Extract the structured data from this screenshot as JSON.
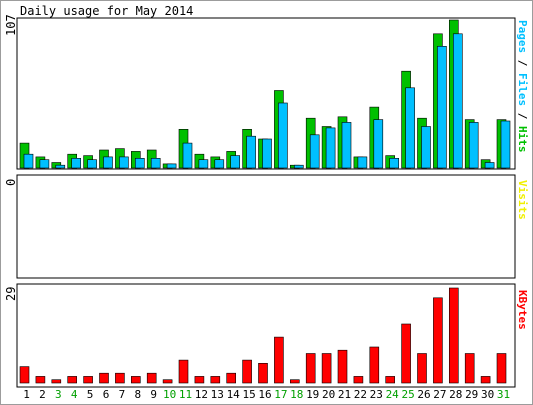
{
  "chart_data": [
    {
      "type": "bar",
      "title": "Daily usage for May 2014",
      "ymax_label": "107",
      "right_label_parts": [
        {
          "text": "Pages",
          "color": "#00c0ff"
        },
        {
          "text": " / ",
          "color": "#000000"
        },
        {
          "text": "Files",
          "color": "#00c0ff"
        },
        {
          "text": " / ",
          "color": "#000000"
        },
        {
          "text": "Hits",
          "color": "#00c000"
        }
      ],
      "ylim": [
        0,
        107
      ],
      "categories": [
        "1",
        "2",
        "3",
        "4",
        "5",
        "6",
        "7",
        "8",
        "9",
        "10",
        "11",
        "12",
        "13",
        "14",
        "15",
        "16",
        "17",
        "18",
        "19",
        "20",
        "21",
        "22",
        "23",
        "24",
        "25",
        "26",
        "27",
        "28",
        "29",
        "30",
        "31"
      ],
      "series": [
        {
          "name": "Hits",
          "color": "#00c000",
          "values": [
            18,
            8,
            4,
            10,
            9,
            13,
            14,
            12,
            13,
            3,
            28,
            10,
            8,
            12,
            28,
            21,
            56,
            2,
            36,
            30,
            37,
            8,
            44,
            9,
            70,
            36,
            97,
            107,
            35,
            6,
            35
          ]
        },
        {
          "name": "Files",
          "color": "#00c0ff",
          "values": [
            10,
            6,
            2,
            7,
            6,
            8,
            8,
            7,
            7,
            3,
            18,
            6,
            6,
            9,
            23,
            21,
            47,
            2,
            24,
            29,
            33,
            8,
            35,
            7,
            58,
            30,
            88,
            97,
            33,
            4,
            34
          ]
        },
        {
          "name": "Pages",
          "color": "#00c0ff",
          "values": [
            0,
            0,
            0,
            0,
            0,
            0,
            0,
            0,
            0,
            0,
            0,
            0,
            0,
            0,
            0,
            0,
            0,
            0,
            0,
            0,
            0,
            0,
            0,
            0,
            0,
            0,
            0,
            0,
            0,
            0,
            0
          ]
        }
      ]
    },
    {
      "type": "bar",
      "ymax_label": "0",
      "right_label_parts": [
        {
          "text": "Visits",
          "color": "#f0f000"
        }
      ],
      "ylim": [
        0,
        1
      ],
      "series": [
        {
          "name": "Visits",
          "color": "#f0f000",
          "values": [
            0,
            0,
            0,
            0,
            0,
            0,
            0,
            0,
            0,
            0,
            0,
            0,
            0,
            0,
            0,
            0,
            0,
            0,
            0,
            0,
            0,
            0,
            0,
            0,
            0,
            0,
            0,
            0,
            0,
            0,
            0
          ]
        }
      ]
    },
    {
      "type": "bar",
      "ymax_label": "29",
      "right_label_parts": [
        {
          "text": "KBytes",
          "color": "#ff0000"
        }
      ],
      "ylim": [
        0,
        29
      ],
      "series": [
        {
          "name": "KBytes",
          "color": "#ff0000",
          "values": [
            5,
            2,
            1,
            2,
            2,
            3,
            3,
            2,
            3,
            1,
            7,
            2,
            2,
            3,
            7,
            6,
            14,
            1,
            9,
            9,
            10,
            2,
            11,
            2,
            18,
            9,
            26,
            29,
            9,
            2,
            9
          ]
        }
      ]
    }
  ],
  "x_labels": [
    {
      "text": "1",
      "color": "#000000"
    },
    {
      "text": "2",
      "color": "#000000"
    },
    {
      "text": "3",
      "color": "#00a000"
    },
    {
      "text": "4",
      "color": "#00a000"
    },
    {
      "text": "5",
      "color": "#000000"
    },
    {
      "text": "6",
      "color": "#000000"
    },
    {
      "text": "7",
      "color": "#000000"
    },
    {
      "text": "8",
      "color": "#000000"
    },
    {
      "text": "9",
      "color": "#000000"
    },
    {
      "text": "10",
      "color": "#00a000"
    },
    {
      "text": "11",
      "color": "#00a000"
    },
    {
      "text": "12",
      "color": "#000000"
    },
    {
      "text": "13",
      "color": "#000000"
    },
    {
      "text": "14",
      "color": "#000000"
    },
    {
      "text": "15",
      "color": "#000000"
    },
    {
      "text": "16",
      "color": "#000000"
    },
    {
      "text": "17",
      "color": "#00a000"
    },
    {
      "text": "18",
      "color": "#00a000"
    },
    {
      "text": "19",
      "color": "#000000"
    },
    {
      "text": "20",
      "color": "#000000"
    },
    {
      "text": "21",
      "color": "#000000"
    },
    {
      "text": "22",
      "color": "#000000"
    },
    {
      "text": "23",
      "color": "#000000"
    },
    {
      "text": "24",
      "color": "#00a000"
    },
    {
      "text": "25",
      "color": "#00a000"
    },
    {
      "text": "26",
      "color": "#000000"
    },
    {
      "text": "27",
      "color": "#000000"
    },
    {
      "text": "28",
      "color": "#000000"
    },
    {
      "text": "29",
      "color": "#000000"
    },
    {
      "text": "30",
      "color": "#000000"
    },
    {
      "text": "31",
      "color": "#00a000"
    }
  ]
}
